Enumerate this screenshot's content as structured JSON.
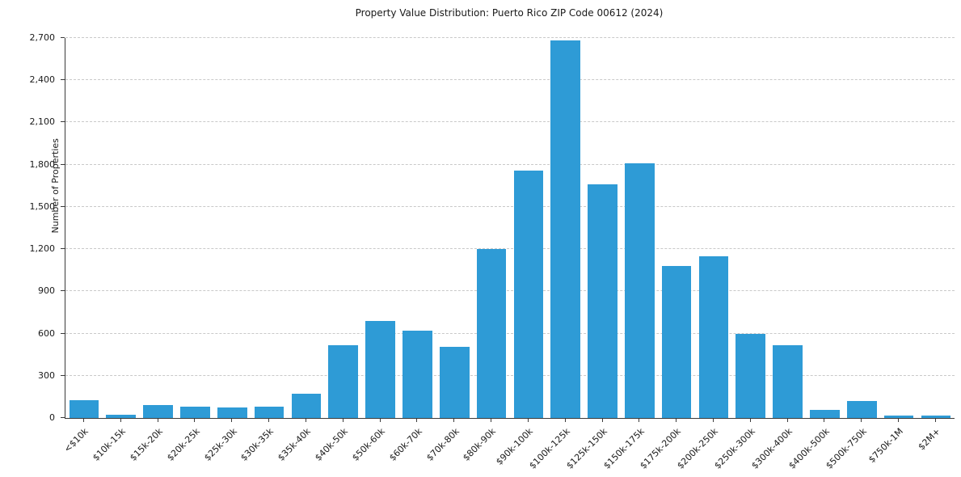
{
  "chart_data": {
    "type": "bar",
    "title": "Property Value Distribution: Puerto Rico ZIP Code 00612 (2024)",
    "xlabel": "",
    "ylabel": "Number of Properties",
    "categories": [
      "<$10k",
      "$10k-15k",
      "$15k-20k",
      "$20k-25k",
      "$25k-30k",
      "$30k-35k",
      "$35k-40k",
      "$40k-50k",
      "$50k-60k",
      "$60k-70k",
      "$70k-80k",
      "$80k-90k",
      "$90k-100k",
      "$100k-125k",
      "$125k-150k",
      "$150k-175k",
      "$175k-200k",
      "$200k-250k",
      "$250k-300k",
      "$300k-400k",
      "$400k-500k",
      "$500k-750k",
      "$750k-1M",
      "$2M+"
    ],
    "values": [
      125,
      25,
      90,
      80,
      75,
      80,
      175,
      515,
      690,
      620,
      505,
      1200,
      1760,
      2680,
      1660,
      1810,
      1080,
      1150,
      600,
      515,
      60,
      120,
      15,
      20
    ],
    "ylim": [
      0,
      2700
    ],
    "ytick_step": 300,
    "grid": "horizontal-dashed",
    "legend": "none",
    "bar_color": "#2E9BD6",
    "background_color": "#ffffff"
  }
}
